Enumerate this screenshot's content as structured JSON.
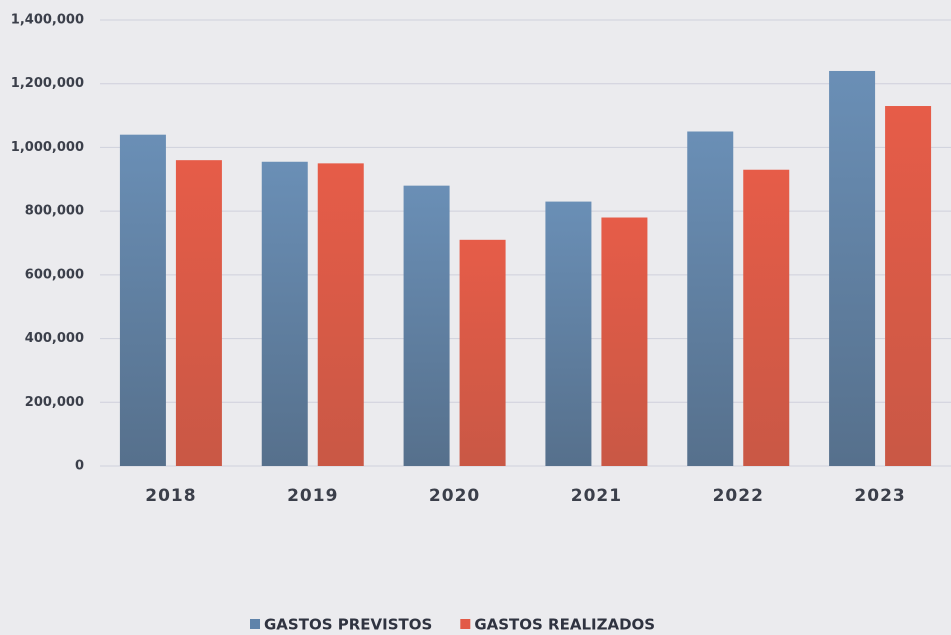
{
  "chart_data": {
    "type": "bar",
    "categories": [
      "2018",
      "2019",
      "2020",
      "2021",
      "2022",
      "2023"
    ],
    "series": [
      {
        "name": "GASTOS PREVISTOS",
        "color": "#5f83aa",
        "values": [
          1040000,
          955000,
          880000,
          830000,
          1050000,
          1240000
        ]
      },
      {
        "name": "GASTOS REALIZADOS",
        "color": "#e25a47",
        "values": [
          960000,
          950000,
          710000,
          780000,
          930000,
          1130000
        ]
      }
    ],
    "ylim": [
      0,
      1400000
    ],
    "yticks": [
      0,
      {
        "value": 200000,
        "label": "200,000"
      },
      {
        "value": 400000,
        "label": "400,000"
      },
      {
        "value": 600000,
        "label": "600,000"
      },
      {
        "value": 800000,
        "label": "800,000"
      },
      {
        "value": 1000000,
        "label": "1,000,000"
      },
      {
        "value": 1200000,
        "label": "1,200,000"
      },
      {
        "value": 1400000,
        "label": "1,400,000"
      }
    ],
    "grid": true,
    "legend": "bottom"
  }
}
